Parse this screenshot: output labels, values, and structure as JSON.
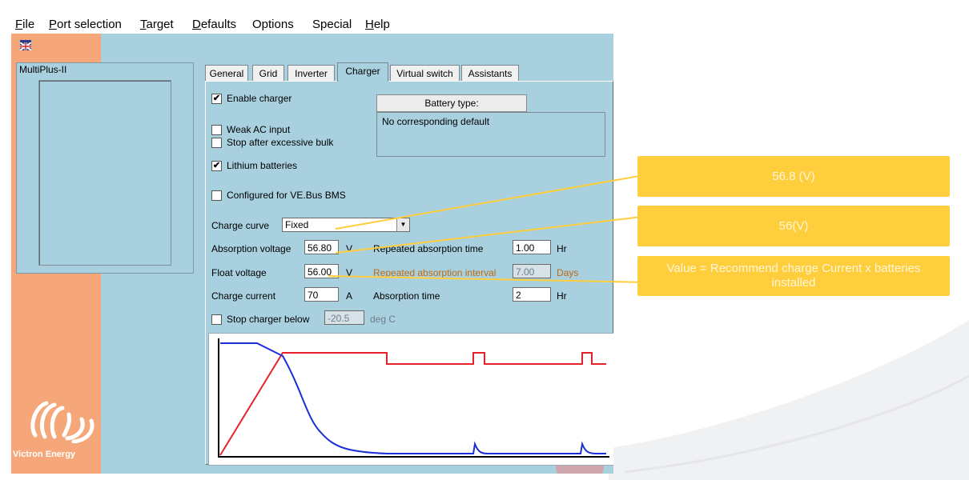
{
  "menu": {
    "items": [
      {
        "access_key": "F",
        "rest": "ile"
      },
      {
        "access_key": "P",
        "rest": "ort selection"
      },
      {
        "access_key": "T",
        "rest": "arget"
      },
      {
        "access_key": "D",
        "rest": "efaults"
      },
      {
        "access_key": "",
        "rest": "Options"
      },
      {
        "access_key": "",
        "rest": "Special"
      },
      {
        "access_key": "H",
        "rest": "elp"
      }
    ]
  },
  "sidebar": {
    "device_name": "MultiPlus-II",
    "brand_text": "Victron Energy"
  },
  "tabs": [
    {
      "label": "General"
    },
    {
      "label": "Grid"
    },
    {
      "label": "Inverter"
    },
    {
      "label": "Charger",
      "active": true
    },
    {
      "label": "Virtual switch"
    },
    {
      "label": "Assistants"
    }
  ],
  "charger": {
    "enable_charger": {
      "label": "Enable charger",
      "checked": true
    },
    "weak_ac_input": {
      "label": "Weak AC input",
      "checked": false
    },
    "stop_after_bulk": {
      "label": "Stop after excessive bulk",
      "checked": false
    },
    "lithium_batteries": {
      "label": "Lithium batteries",
      "checked": true
    },
    "ve_bus_bms": {
      "label": "Configured for VE.Bus BMS",
      "checked": false
    },
    "battery_type_button": "Battery type:",
    "battery_type_info": "No corresponding default",
    "charge_curve": {
      "label": "Charge curve",
      "value": "Fixed"
    },
    "absorption_voltage": {
      "label": "Absorption voltage",
      "value": "56.80",
      "unit": "V"
    },
    "float_voltage": {
      "label": "Float voltage",
      "value": "56.00",
      "unit": "V"
    },
    "charge_current": {
      "label": "Charge current",
      "value": "70",
      "unit": "A"
    },
    "repeated_absorption_time": {
      "label": "Repeated absorption time",
      "value": "1.00",
      "unit": "Hr"
    },
    "repeated_absorption_interval": {
      "label": "Repeated absorption interval",
      "value": "7.00",
      "unit": "Days"
    },
    "absorption_time": {
      "label": "Absorption time",
      "value": "2",
      "unit": "Hr"
    },
    "stop_charger_below": {
      "label": "Stop charger below",
      "checked": false,
      "value": "-20.5",
      "unit": "deg C"
    }
  },
  "callouts": [
    {
      "text": "56.8 (V)"
    },
    {
      "text": "56(V)"
    },
    {
      "text": "Value = Recommend charge Current x batteries installed"
    }
  ],
  "colors": {
    "client_bg": "#a8d0df",
    "sidebar_bg": "#f5a77a",
    "callout_bg": "#ffce3c",
    "voltage_curve": "#e8202a",
    "current_curve": "#1a2fd6"
  }
}
